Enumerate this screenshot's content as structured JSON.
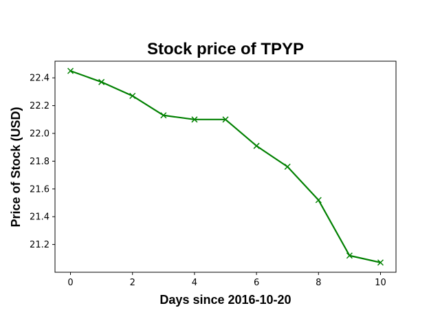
{
  "chart_data": {
    "type": "line",
    "title": "Stock price of TPYP",
    "xlabel": "Days since 2016-10-20",
    "ylabel": "Price of Stock (USD)",
    "x": [
      0,
      1,
      2,
      3,
      4,
      5,
      6,
      7,
      8,
      9,
      10
    ],
    "series": [
      {
        "values": [
          22.45,
          22.37,
          22.27,
          22.13,
          22.1,
          22.1,
          21.91,
          21.76,
          21.52,
          21.12,
          21.07
        ],
        "color": "#008000",
        "marker": "x"
      }
    ],
    "xlim": [
      -0.5,
      10.5
    ],
    "ylim": [
      21.0,
      22.52
    ],
    "xticks": [
      0,
      2,
      4,
      6,
      8,
      10
    ],
    "yticks": [
      21.2,
      21.4,
      21.6,
      21.8,
      22.0,
      22.2,
      22.4
    ],
    "xtick_labels": [
      "0",
      "2",
      "4",
      "6",
      "8",
      "10"
    ],
    "ytick_labels": [
      "21.2",
      "21.4",
      "21.6",
      "21.8",
      "22.0",
      "22.2",
      "22.4"
    ],
    "grid": false,
    "legend": "none"
  }
}
